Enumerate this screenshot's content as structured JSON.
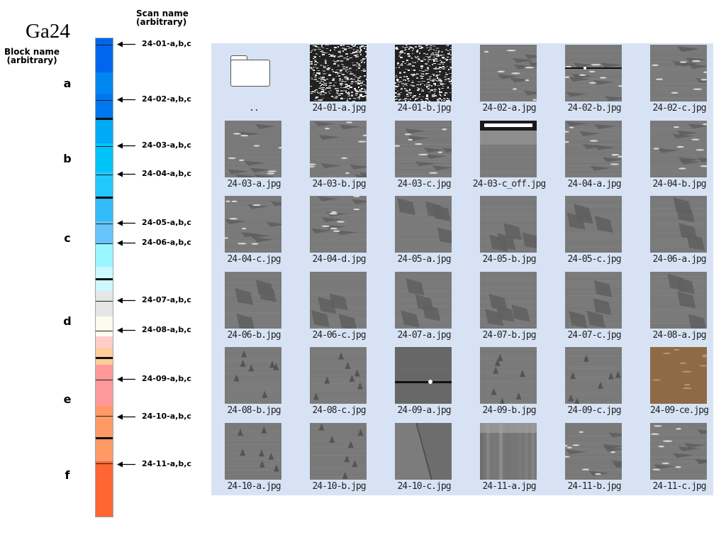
{
  "title": "Ga24",
  "scan_header": [
    "Scan name",
    "(arbitrary)"
  ],
  "block_header": [
    "Block name",
    "(arbitrary)"
  ],
  "blocks": [
    "a",
    "b",
    "c",
    "d",
    "e",
    "f"
  ],
  "scans": [
    "24-01-a,b,c",
    "24-02-a,b,c",
    "24-03-a,b,c",
    "24-04-a,b,c",
    "24-05-a,b,c",
    "24-06-a,b,c",
    "24-07-a,b,c",
    "24-08-a,b,c",
    "24-09-a,b,c",
    "24-10-a,b,c",
    "24-11-a,b,c"
  ],
  "column_colors": [
    "#0066ee",
    "#0088f0",
    "#0077ee",
    "#00aaf5",
    "#00c4f8",
    "#22c8fb",
    "#33bbfa",
    "#66c4fa",
    "#99f5ff",
    "#ccf8ff",
    "#e6e6e6",
    "#fefaee",
    "#ffcccc",
    "#ffcc99",
    "#ff9999",
    "#ff9966",
    "#ff6633"
  ],
  "explorer": {
    "parent_label": "..",
    "files": [
      {
        "name": "24-01-a.jpg",
        "style": "noise"
      },
      {
        "name": "24-01-b.jpg",
        "style": "noise"
      },
      {
        "name": "24-02-a.jpg",
        "style": "streaks"
      },
      {
        "name": "24-02-b.jpg",
        "style": "streaks-line"
      },
      {
        "name": "24-02-c.jpg",
        "style": "streaks"
      },
      {
        "name": "24-03-a.jpg",
        "style": "streaks"
      },
      {
        "name": "24-03-b.jpg",
        "style": "streaks"
      },
      {
        "name": "24-03-c.jpg",
        "style": "streaks"
      },
      {
        "name": "24-03-c_off.jpg",
        "style": "bright-top"
      },
      {
        "name": "24-04-a.jpg",
        "style": "streaks"
      },
      {
        "name": "24-04-b.jpg",
        "style": "streaks"
      },
      {
        "name": "24-04-c.jpg",
        "style": "streaks"
      },
      {
        "name": "24-04-d.jpg",
        "style": "streaks"
      },
      {
        "name": "24-05-a.jpg",
        "style": "domains"
      },
      {
        "name": "24-05-b.jpg",
        "style": "domains"
      },
      {
        "name": "24-05-c.jpg",
        "style": "domains"
      },
      {
        "name": "24-06-a.jpg",
        "style": "domains"
      },
      {
        "name": "24-06-b.jpg",
        "style": "domains"
      },
      {
        "name": "24-06-c.jpg",
        "style": "domains"
      },
      {
        "name": "24-07-a.jpg",
        "style": "domains"
      },
      {
        "name": "24-07-b.jpg",
        "style": "domains"
      },
      {
        "name": "24-07-c.jpg",
        "style": "domains"
      },
      {
        "name": "24-08-a.jpg",
        "style": "domains"
      },
      {
        "name": "24-08-b.jpg",
        "style": "triangles"
      },
      {
        "name": "24-08-c.jpg",
        "style": "triangles"
      },
      {
        "name": "24-09-a.jpg",
        "style": "bright-line"
      },
      {
        "name": "24-09-b.jpg",
        "style": "triangles"
      },
      {
        "name": "24-09-c.jpg",
        "style": "triangles"
      },
      {
        "name": "24-09-ce.jpg",
        "style": "sepia"
      },
      {
        "name": "24-10-a.jpg",
        "style": "triangles"
      },
      {
        "name": "24-10-b.jpg",
        "style": "triangles"
      },
      {
        "name": "24-10-c.jpg",
        "style": "diagonal"
      },
      {
        "name": "24-11-a.jpg",
        "style": "stripes"
      },
      {
        "name": "24-11-b.jpg",
        "style": "streaks"
      },
      {
        "name": "24-11-c.jpg",
        "style": "streaks"
      }
    ]
  }
}
